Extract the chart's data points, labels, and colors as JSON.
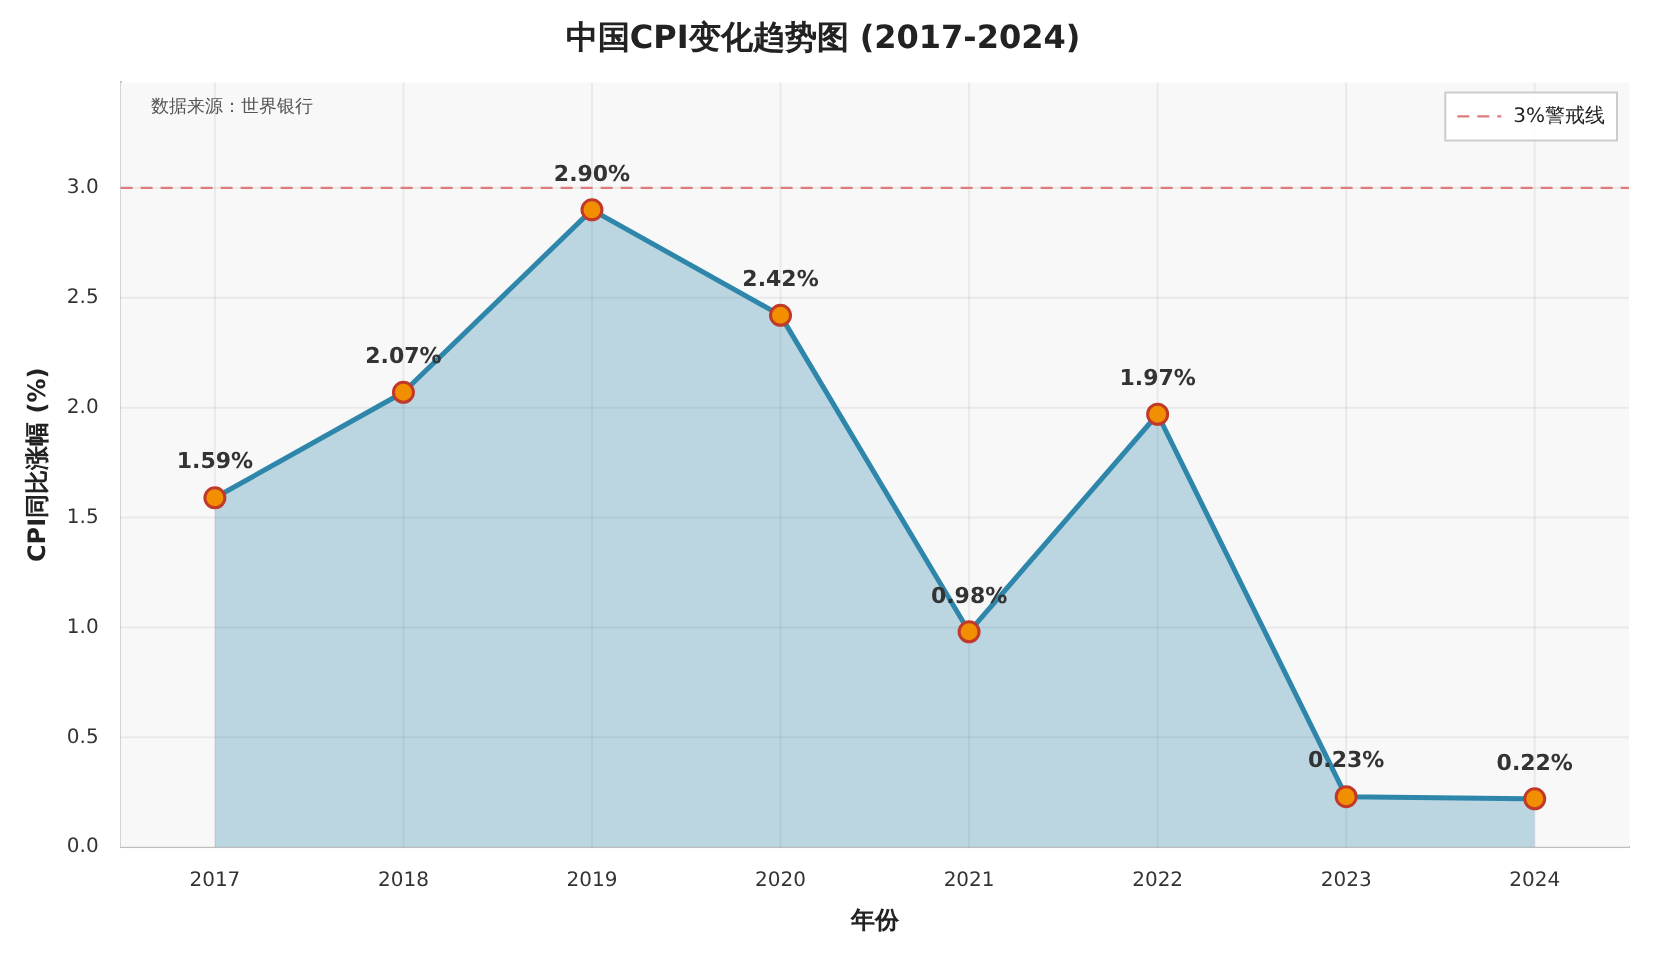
{
  "chart_data": {
    "type": "area",
    "title": "中国CPI变化趋势图 (2017-2024)",
    "xlabel": "年份",
    "ylabel": "CPI同比涨幅 (%)",
    "categories": [
      "2017",
      "2018",
      "2019",
      "2020",
      "2021",
      "2022",
      "2023",
      "2024"
    ],
    "series": [
      {
        "color": "#2e86ab",
        "colors": [
          "#f18f01",
          "#f18f01",
          "#f18f01",
          "#f18f01",
          "#f18f01",
          "#f18f01",
          "#f18f01",
          "#f18f01"
        ],
        "values": [
          1.59,
          2.07,
          2.9,
          2.42,
          0.98,
          1.97,
          0.23,
          0.22
        ],
        "value_labels": [
          "1.59%",
          "2.07%",
          "2.90%",
          "2.42%",
          "0.98%",
          "1.97%",
          "0.23%",
          "0.22%"
        ]
      }
    ],
    "ylim": [
      0,
      3.48
    ],
    "yticks": [
      {
        "value": 0,
        "label": "0.0"
      },
      0.5,
      {
        "value": 1,
        "label": "1.0"
      },
      1.5,
      {
        "value": 2,
        "label": "2.0"
      },
      2.5,
      {
        "value": 3,
        "label": "3.0"
      }
    ],
    "ref_lines": [
      {
        "axis": "y",
        "value": 3.0,
        "label": "3%警戒线",
        "color": "#e07b7b",
        "line_style": "dashed"
      }
    ],
    "annotations": [
      "数据来源：世界银行"
    ],
    "grid": true,
    "legend": "top right",
    "marker": "circle",
    "line_style": "solid"
  }
}
